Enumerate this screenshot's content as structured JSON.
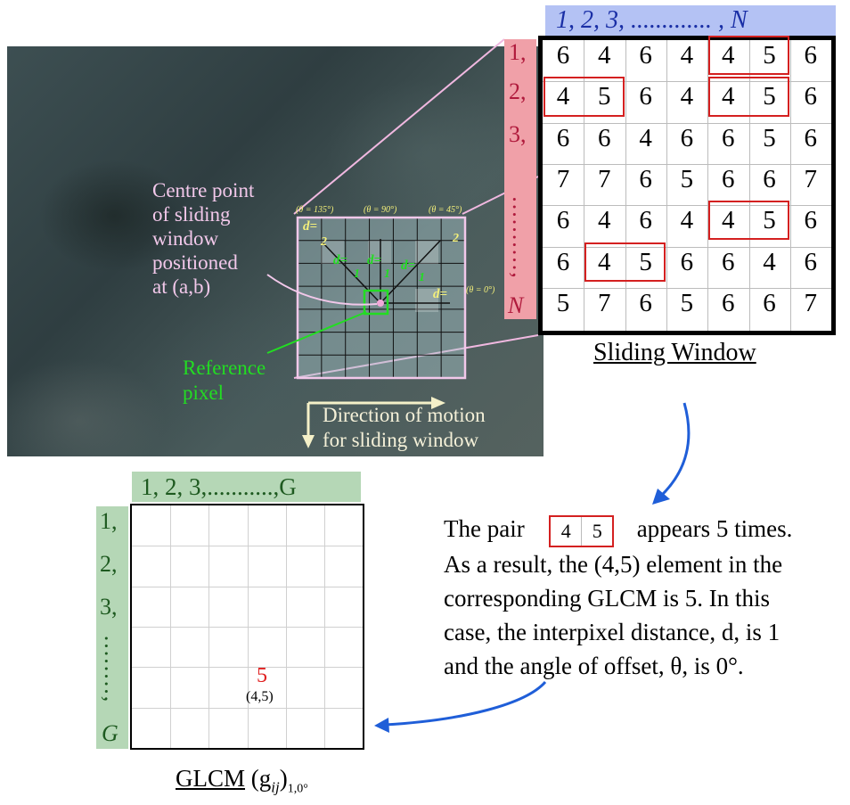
{
  "sliding_window": {
    "top_header": "1,  2,   3, ............. , N",
    "side_labels": [
      "1,",
      "2,",
      "3,",
      "..........,",
      "N"
    ],
    "grid": [
      [
        "6",
        "4",
        "6",
        "4",
        "4",
        "5",
        "6"
      ],
      [
        "4",
        "5",
        "6",
        "4",
        "4",
        "5",
        "6"
      ],
      [
        "6",
        "6",
        "4",
        "6",
        "6",
        "5",
        "6"
      ],
      [
        "7",
        "7",
        "6",
        "5",
        "6",
        "6",
        "7"
      ],
      [
        "6",
        "4",
        "6",
        "4",
        "4",
        "5",
        "6"
      ],
      [
        "6",
        "4",
        "5",
        "6",
        "6",
        "4",
        "6"
      ],
      [
        "5",
        "7",
        "6",
        "5",
        "6",
        "6",
        "7"
      ]
    ],
    "highlighted_pairs": [
      [
        0,
        4
      ],
      [
        1,
        0
      ],
      [
        1,
        4
      ],
      [
        4,
        4
      ],
      [
        5,
        1
      ]
    ],
    "caption": "Sliding Window"
  },
  "photo": {
    "angle_135": "(θ = 135°)",
    "angle_90": "(θ = 90°)",
    "angle_45": "(θ = 45°)",
    "angle_0": "(θ = 0°)",
    "d_label": "d=",
    "d_values": [
      "2",
      "1",
      "1",
      "1",
      "2"
    ],
    "centre_text": [
      "Centre point",
      "of sliding",
      "window",
      "positioned",
      "at (a,b)"
    ],
    "reference_text": [
      "Reference",
      "pixel"
    ],
    "motion_text": [
      "Direction of motion",
      "for sliding window"
    ]
  },
  "glcm": {
    "top_header": "1,  2,   3,...........,G",
    "side_labels": [
      "1,",
      "2,",
      "3,",
      "........,",
      "G"
    ],
    "value": "5",
    "value_index": "(4,5)",
    "caption": "GLCM",
    "caption_symbol": "(g",
    "caption_sub": "ij",
    "caption_close": ")",
    "caption_subscript": "1,0°"
  },
  "explanation": {
    "line1_start": "The pair",
    "pair_a": "4",
    "pair_b": "5",
    "line1_end": "appears 5 times.",
    "line2": "As a result, the (4,5) element in the",
    "line3": "corresponding GLCM is 5. In this",
    "line4": "case, the interpixel distance, d, is 1",
    "line5": "and the angle of offset, θ, is 0°."
  },
  "colors": {
    "blue_header": "#b4c2f4",
    "pink_side": "#f0a0a8",
    "green_header": "#b5d7b6",
    "red_box": "#d42020",
    "arrow_blue": "#1f5ed8",
    "label_green": "#22dd22",
    "label_pink": "#f2c8ea",
    "angle_yellow": "#f4f07a"
  }
}
